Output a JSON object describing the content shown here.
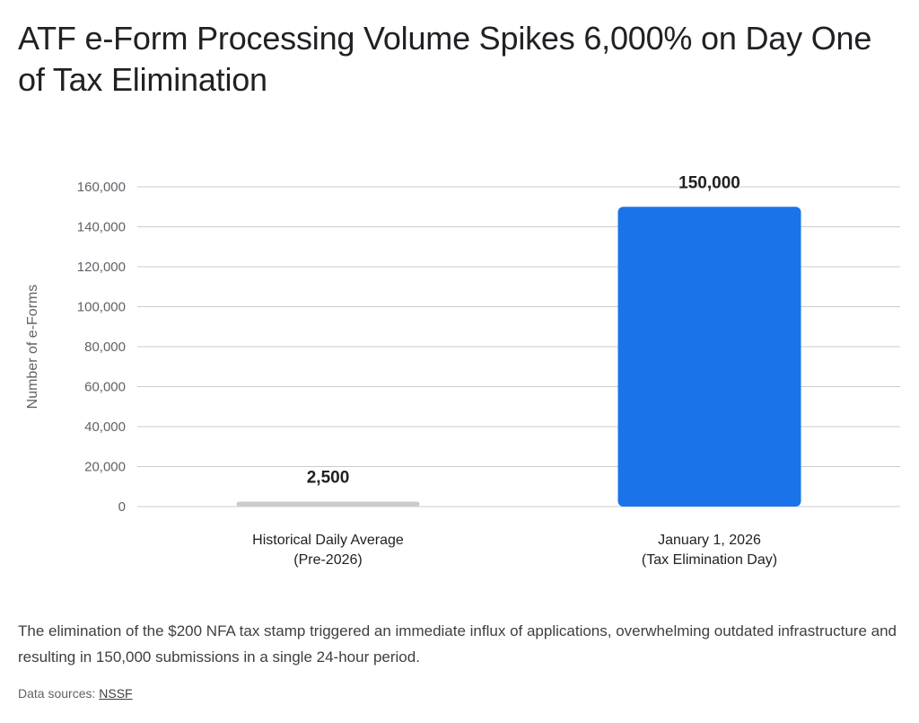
{
  "title": "ATF e-Form Processing Volume Spikes 6,000% on Day One of Tax Elimination",
  "caption": "The elimination of the $200 NFA tax stamp triggered an immediate influx of applications, overwhelming outdated infrastructure and resulting in 150,000 submissions in a single 24-hour period.",
  "sources": {
    "label": "Data sources:",
    "link_text": "NSSF"
  },
  "colors": {
    "bar_historical": "#cccccc",
    "bar_highlight": "#1a73e8",
    "grid": "#cccccc",
    "axis_text": "#5f6368"
  },
  "chart_data": {
    "type": "bar",
    "categories": [
      [
        "Historical Daily Average",
        "(Pre-2026)"
      ],
      [
        "January 1, 2026",
        "(Tax Elimination Day)"
      ]
    ],
    "values": [
      2500,
      150000
    ],
    "data_labels": [
      "2,500",
      "150,000"
    ],
    "ylabel": "Number of e-Forms",
    "xlabel": "",
    "ylim": [
      0,
      160000
    ],
    "yticks": [
      0,
      20000,
      40000,
      60000,
      80000,
      100000,
      120000,
      140000,
      160000
    ],
    "ytick_labels": [
      "0",
      "20,000",
      "40,000",
      "60,000",
      "80,000",
      "100,000",
      "120,000",
      "140,000",
      "160,000"
    ],
    "grid": true,
    "legend": "none"
  }
}
